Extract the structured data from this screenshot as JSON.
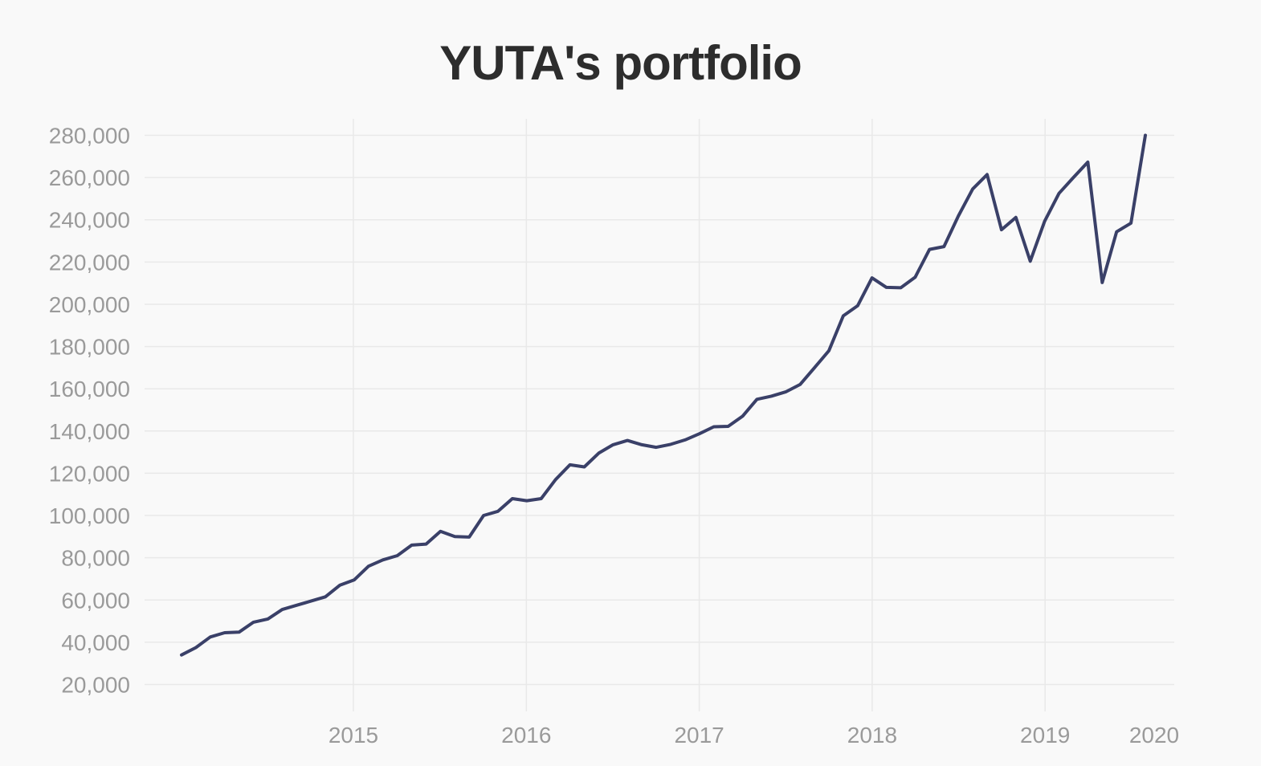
{
  "chart_data": {
    "type": "line",
    "title": "YUTA's portfolio",
    "xlabel": "",
    "ylabel": "",
    "x_ticks": [
      "2015",
      "2016",
      "2017",
      "2018",
      "2019",
      "2020"
    ],
    "y_ticks": [
      "20,000",
      "40,000",
      "60,000",
      "80,000",
      "100,000",
      "120,000",
      "140,000",
      "160,000",
      "180,000",
      "200,000",
      "220,000",
      "240,000",
      "260,000",
      "280,000"
    ],
    "ylim": [
      20000,
      280000
    ],
    "grid": true,
    "legend": false,
    "color": "#3a4068",
    "series": [
      {
        "x": [
          "2014-01",
          "2014-02",
          "2014-03",
          "2014-04",
          "2014-05",
          "2014-06",
          "2014-07",
          "2014-08",
          "2014-09",
          "2014-10",
          "2014-11",
          "2014-12",
          "2015-01",
          "2015-02",
          "2015-03",
          "2015-04",
          "2015-05",
          "2015-06",
          "2015-07",
          "2015-08",
          "2015-09",
          "2015-10",
          "2015-11",
          "2015-12",
          "2016-01",
          "2016-02",
          "2016-03",
          "2016-04",
          "2016-05",
          "2016-06",
          "2016-07",
          "2016-08",
          "2016-09",
          "2016-10",
          "2016-11",
          "2016-12",
          "2017-01",
          "2017-02",
          "2017-03",
          "2017-04",
          "2017-05",
          "2017-06",
          "2017-07",
          "2017-08",
          "2017-09",
          "2017-10",
          "2017-11",
          "2017-12",
          "2018-01",
          "2018-02",
          "2018-03",
          "2018-04",
          "2018-05",
          "2018-06",
          "2018-07",
          "2018-08",
          "2018-09",
          "2018-10",
          "2018-11",
          "2018-12",
          "2019-01",
          "2019-02",
          "2019-03",
          "2019-04",
          "2019-05",
          "2019-06",
          "2019-07",
          "2019-08"
        ],
        "values": [
          34000,
          37500,
          42500,
          44500,
          44800,
          49500,
          51000,
          55500,
          57500,
          59500,
          61500,
          67000,
          69500,
          76000,
          79000,
          81000,
          86000,
          86500,
          92500,
          90000,
          89800,
          100000,
          102000,
          108000,
          107000,
          108000,
          117000,
          124000,
          123000,
          129500,
          133500,
          135500,
          133500,
          132300,
          133700,
          135800,
          138700,
          142000,
          142200,
          147000,
          155000,
          156500,
          158500,
          162000,
          170000,
          178000,
          194500,
          199300,
          212500,
          208000,
          207800,
          212800,
          226000,
          227300,
          241800,
          254600,
          261400,
          235300,
          241100,
          220400,
          239300,
          252500,
          260000,
          267300,
          210300,
          234300,
          238400,
          280000
        ]
      }
    ]
  }
}
